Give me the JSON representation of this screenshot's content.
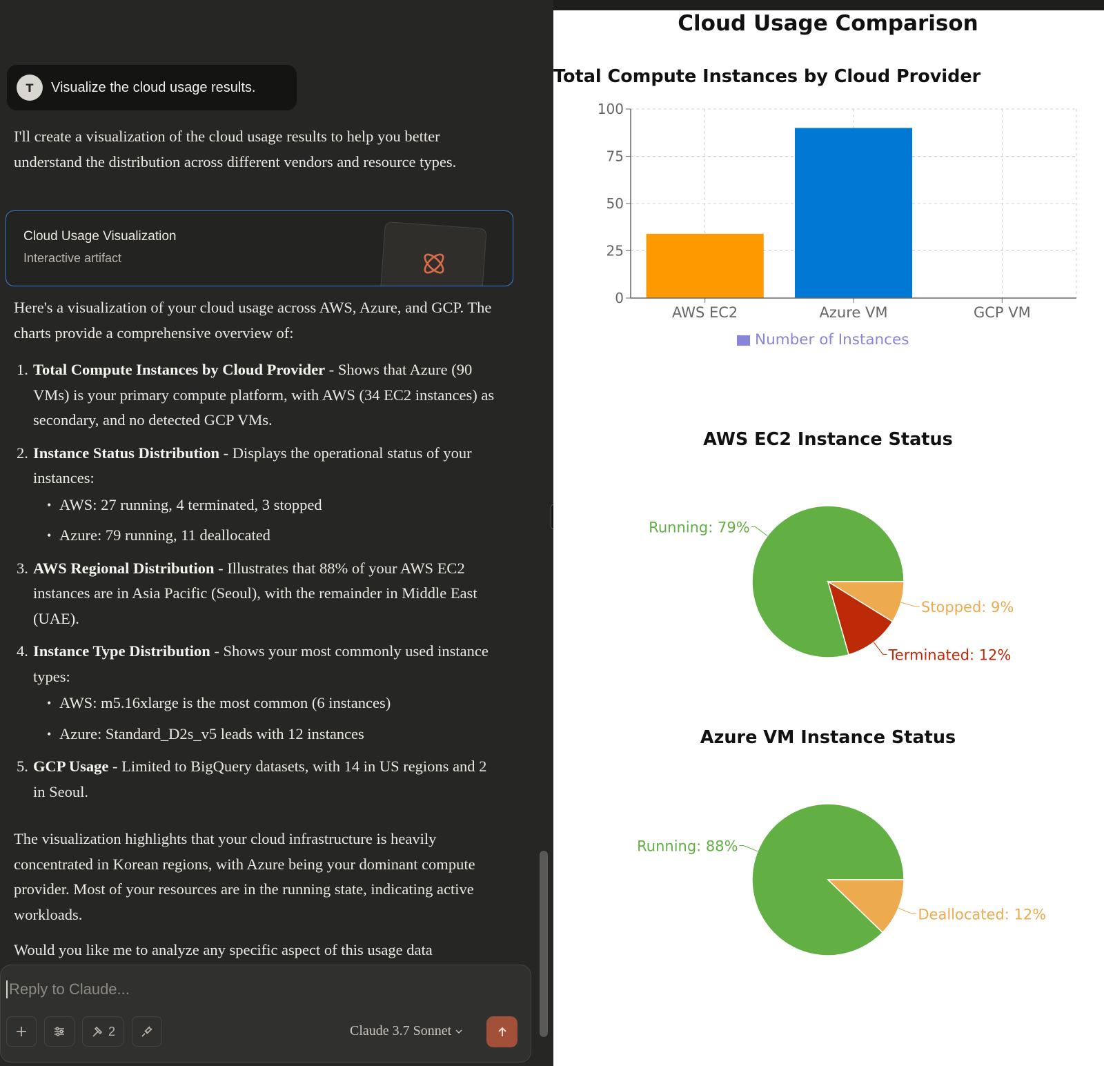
{
  "chat": {
    "user_avatar": "T",
    "user_message": "Visualize the cloud usage results.",
    "intro": "I'll create a visualization of the cloud usage results to help you better understand the distribution across different vendors and resource types.",
    "artifact": {
      "title": "Cloud Usage Visualization",
      "subtitle": "Interactive artifact",
      "icon": "atom-icon"
    },
    "overview": "Here's a visualization of your cloud usage across AWS, Azure, and GCP. The charts provide a comprehensive overview of:",
    "items": [
      {
        "num": "1.",
        "bold": "Total Compute Instances by Cloud Provider",
        "text": " - Shows that Azure (90 VMs) is your primary compute platform, with AWS (34 EC2 instances) as secondary, and no detected GCP VMs.",
        "subitems": []
      },
      {
        "num": "2.",
        "bold": "Instance Status Distribution",
        "text": " - Displays the operational status of your instances:",
        "subitems": [
          "AWS: 27 running, 4 terminated, 3 stopped",
          "Azure: 79 running, 11 deallocated"
        ]
      },
      {
        "num": "3.",
        "bold": "AWS Regional Distribution",
        "text": " - Illustrates that 88% of your AWS EC2 instances are in Asia Pacific (Seoul), with the remainder in Middle East (UAE).",
        "subitems": []
      },
      {
        "num": "4.",
        "bold": "Instance Type Distribution",
        "text": " - Shows your most commonly used instance types:",
        "subitems": [
          "AWS: m5.16xlarge is the most common (6 instances)",
          "Azure: Standard_D2s_v5 leads with 12 instances"
        ]
      },
      {
        "num": "5.",
        "bold": "GCP Usage",
        "text": " - Limited to BigQuery datasets, with 14 in US regions and 2 in Seoul.",
        "subitems": []
      }
    ],
    "conclusion": "The visualization highlights that your cloud infrastructure is heavily concentrated in Korean regions, with Azure being your dominant compute provider. Most of your resources are in the running state, indicating active workloads.",
    "followup": "Would you like me to analyze any specific aspect of this usage data"
  },
  "composer": {
    "placeholder": "Reply to Claude...",
    "tools_count": "2",
    "model": "Claude 3.7 Sonnet",
    "icons": {
      "add": "plus-icon",
      "settings": "sliders-icon",
      "tools": "hammer-icon",
      "integrations": "plug-icon",
      "send": "arrow-up-icon",
      "model_chevron": "chevron-down-icon"
    }
  },
  "artifact_view": {
    "title": "Cloud Usage Comparison"
  },
  "chart_data": [
    {
      "type": "bar",
      "title": "Total Compute Instances by Cloud Provider",
      "categories": [
        "AWS EC2",
        "Azure VM",
        "GCP VM"
      ],
      "values": [
        34,
        90,
        0
      ],
      "bar_colors": [
        "#FF9900",
        "#0078D4",
        "#4285F4"
      ],
      "ylim": [
        0,
        100
      ],
      "yticks": [
        0,
        25,
        50,
        75,
        100
      ],
      "legend": "Number of Instances",
      "legend_color": "#8884d8",
      "grid": true
    },
    {
      "type": "pie",
      "title": "AWS EC2 Instance Status",
      "slices": [
        {
          "label": "Running",
          "value": 27,
          "pct_label": "Running: 79%",
          "color": "#62AF44"
        },
        {
          "label": "Stopped",
          "value": 3,
          "pct_label": "Stopped: 9%",
          "color": "#EEAA4F"
        },
        {
          "label": "Terminated",
          "value": 4,
          "pct_label": "Terminated: 12%",
          "color": "#BC2A07"
        }
      ]
    },
    {
      "type": "pie",
      "title": "Azure VM Instance Status",
      "slices": [
        {
          "label": "Running",
          "value": 79,
          "pct_label": "Running: 88%",
          "color": "#62AF44"
        },
        {
          "label": "Deallocated",
          "value": 11,
          "pct_label": "Deallocated: 12%",
          "color": "#EEAA4F"
        }
      ]
    }
  ]
}
